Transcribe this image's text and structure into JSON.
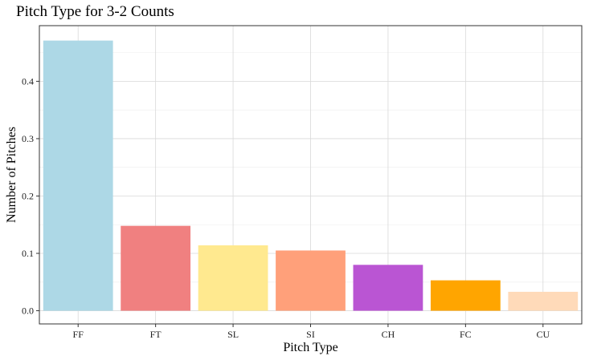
{
  "chart_data": {
    "type": "bar",
    "title": "Pitch Type for 3-2 Counts",
    "xlabel": "Pitch Type",
    "ylabel": "Number of Pitches",
    "categories": [
      "FF",
      "FT",
      "SL",
      "SI",
      "CH",
      "FC",
      "CU"
    ],
    "values": [
      0.471,
      0.148,
      0.114,
      0.105,
      0.08,
      0.053,
      0.033
    ],
    "colors": [
      "#add8e6",
      "#f08080",
      "#ffe98f",
      "#ffa07a",
      "#ba55d3",
      "#ffa500",
      "#ffdab9"
    ],
    "yticks": [
      0.0,
      0.1,
      0.2,
      0.3,
      0.4
    ],
    "ytick_labels": [
      "0.0",
      "0.1",
      "0.2",
      "0.3",
      "0.4"
    ],
    "ylim": [
      -0.023,
      0.497
    ],
    "grid": true,
    "legend": "none"
  }
}
